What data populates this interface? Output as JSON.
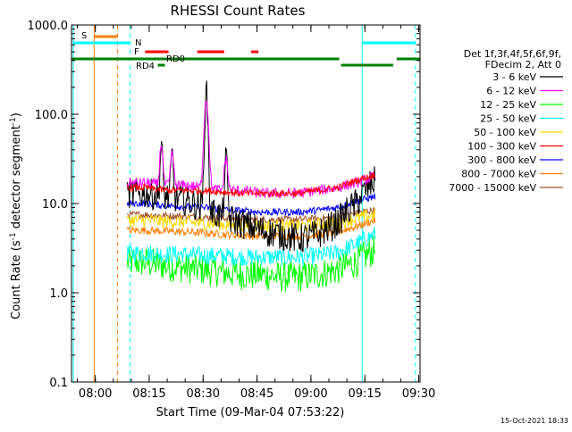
{
  "chart_data": {
    "type": "line",
    "title": "RHESSI Count Rates",
    "xlabel": "Start Time (09-Mar-04 07:53:22)",
    "ylabel_text": "Count Rate (s",
    "ylabel_sup1": "-1",
    "ylabel_mid": " detector segment",
    "ylabel_sup2": "-1",
    "ylabel_end": ")",
    "yscale": "log",
    "ylim": [
      0.1,
      1000
    ],
    "xlim_minutes_after_start": [
      0,
      97
    ],
    "x_ticks": [
      {
        "label": "08:00",
        "minutes": 6.63
      },
      {
        "label": "08:15",
        "minutes": 21.63
      },
      {
        "label": "08:30",
        "minutes": 36.63
      },
      {
        "label": "08:45",
        "minutes": 51.63
      },
      {
        "label": "09:00",
        "minutes": 66.63
      },
      {
        "label": "09:15",
        "minutes": 81.63
      },
      {
        "label": "09:30",
        "minutes": 96.63
      }
    ],
    "y_ticks": [
      {
        "label": "1000.0",
        "value": 1000
      },
      {
        "label": "100.0",
        "value": 100
      },
      {
        "label": "10.0",
        "value": 10
      },
      {
        "label": "1.0",
        "value": 1
      },
      {
        "label": "0.1",
        "value": 0.1
      }
    ],
    "legend_header": [
      "Det 1f,3f,4f,5f,6f,9f,",
      "FDecim 2, Att 0"
    ],
    "series": [
      {
        "name": "3 - 6 keV",
        "color": "#000000",
        "base": [
          13,
          13,
          12,
          11,
          9,
          7,
          6,
          5,
          4.5,
          4,
          4.5,
          6,
          10,
          18
        ],
        "noise": 0.35,
        "spikes": [
          {
            "t": 37.5,
            "v": 170,
            "w": 0.5
          },
          {
            "t": 25,
            "v": 45,
            "w": 0.4
          },
          {
            "t": 28,
            "v": 35,
            "w": 0.4
          },
          {
            "t": 43,
            "v": 30,
            "w": 0.5
          }
        ]
      },
      {
        "name": "6 - 12 keV",
        "color": "#ff00ff",
        "base": [
          17,
          17,
          16,
          16,
          15,
          14,
          14,
          13,
          13,
          13,
          14,
          15,
          17,
          20
        ],
        "noise": 0.12,
        "spikes": [
          {
            "t": 37.5,
            "v": 150,
            "w": 0.7
          },
          {
            "t": 25,
            "v": 48,
            "w": 0.5
          },
          {
            "t": 28,
            "v": 38,
            "w": 0.5
          },
          {
            "t": 43,
            "v": 32,
            "w": 0.6
          }
        ]
      },
      {
        "name": "12 - 25 keV",
        "color": "#00ff00",
        "base": [
          2.2,
          2.2,
          2.0,
          1.9,
          1.8,
          1.7,
          1.6,
          1.6,
          1.5,
          1.5,
          1.6,
          1.8,
          2.2,
          3.0
        ],
        "noise": 0.35,
        "spikes": []
      },
      {
        "name": "25 - 50 keV",
        "color": "#00ffff",
        "base": [
          2.8,
          2.8,
          2.7,
          2.7,
          2.6,
          2.6,
          2.5,
          2.5,
          2.5,
          2.5,
          2.6,
          2.8,
          3.5,
          4.5
        ],
        "noise": 0.2,
        "spikes": []
      },
      {
        "name": "50 - 100 keV",
        "color": "#ffd700",
        "base": [
          6.5,
          6.5,
          6.3,
          6.2,
          6.0,
          5.8,
          5.7,
          5.6,
          5.6,
          5.6,
          5.8,
          6.0,
          6.8,
          7.5
        ],
        "noise": 0.15,
        "spikes": []
      },
      {
        "name": "100 - 300 keV",
        "color": "#ff0000",
        "base": [
          15,
          15,
          14,
          14,
          14,
          13.5,
          13,
          13,
          13,
          13,
          14,
          15,
          18,
          21
        ],
        "noise": 0.08,
        "spikes": []
      },
      {
        "name": "300 - 800 keV",
        "color": "#0000ff",
        "base": [
          10,
          10,
          9.5,
          9.2,
          9,
          8.6,
          8.3,
          8,
          8,
          8,
          8.4,
          9,
          10.5,
          12
        ],
        "noise": 0.08,
        "spikes": []
      },
      {
        "name": "800 - 7000 keV",
        "color": "#ff7f00",
        "base": [
          5,
          5,
          4.9,
          4.8,
          4.7,
          4.5,
          4.4,
          4.3,
          4.3,
          4.3,
          4.5,
          4.8,
          5.5,
          6.5
        ],
        "noise": 0.09,
        "spikes": []
      },
      {
        "name": "7000 - 15000 keV",
        "color": "#a0522d",
        "base": [
          7.5,
          7.5,
          7.3,
          7.2,
          7.0,
          6.9,
          6.7,
          6.6,
          6.6,
          6.6,
          6.8,
          7.0,
          7.8,
          8.5
        ],
        "noise": 0.08,
        "spikes": []
      }
    ],
    "data_start_minutes": 15.5,
    "data_end_minutes": 84.5,
    "vertical_lines": [
      {
        "minutes": 0.5,
        "color": "#00ffff",
        "style": "solid"
      },
      {
        "minutes": 6.3,
        "color": "#ff7f00",
        "style": "solid"
      },
      {
        "minutes": 12.8,
        "color": "#ff7f00",
        "style": "dashed"
      },
      {
        "minutes": 16.3,
        "color": "#00ffff",
        "style": "dashed"
      },
      {
        "minutes": 80.9,
        "color": "#00ffff",
        "style": "solid"
      },
      {
        "minutes": 95.7,
        "color": "#00ffff",
        "style": "dashed"
      }
    ],
    "flag_bars": [
      {
        "label": "S",
        "color": "#ff7f00",
        "start": 6.3,
        "end": 12.8,
        "y": 1
      },
      {
        "label": "N",
        "color": "#00ffff",
        "start": 0.5,
        "end": 16.3,
        "y": 2
      },
      {
        "label": "N",
        "color": "#00ffff",
        "start": 80.9,
        "end": 95.7,
        "y": 2
      },
      {
        "label": "F",
        "color": "#ff0000",
        "start": 20.5,
        "end": 27,
        "y": 3
      },
      {
        "label": "F",
        "color": "#ff0000",
        "start": 35,
        "end": 42.5,
        "y": 3
      },
      {
        "label": "F",
        "color": "#ff0000",
        "start": 50,
        "end": 52,
        "y": 3
      },
      {
        "label": "RD0",
        "color": "#008000",
        "start": 0,
        "end": 74.5,
        "y": 4
      },
      {
        "label": "RD0",
        "color": "#008000",
        "start": 90.5,
        "end": 97,
        "y": 4
      },
      {
        "label": "RD4",
        "color": "#008000",
        "start": 24,
        "end": 26,
        "y": 5
      },
      {
        "label": "RD4",
        "color": "#008000",
        "start": 75,
        "end": 89.5,
        "y": 5
      }
    ],
    "flag_labels": {
      "S": "S",
      "N": "N",
      "F": "F",
      "RD0": "RD0",
      "RD4": "RD4"
    },
    "grid": false,
    "legend_position": "right"
  },
  "footer": {
    "timestamp": "15-Oct-2021 18:33"
  }
}
